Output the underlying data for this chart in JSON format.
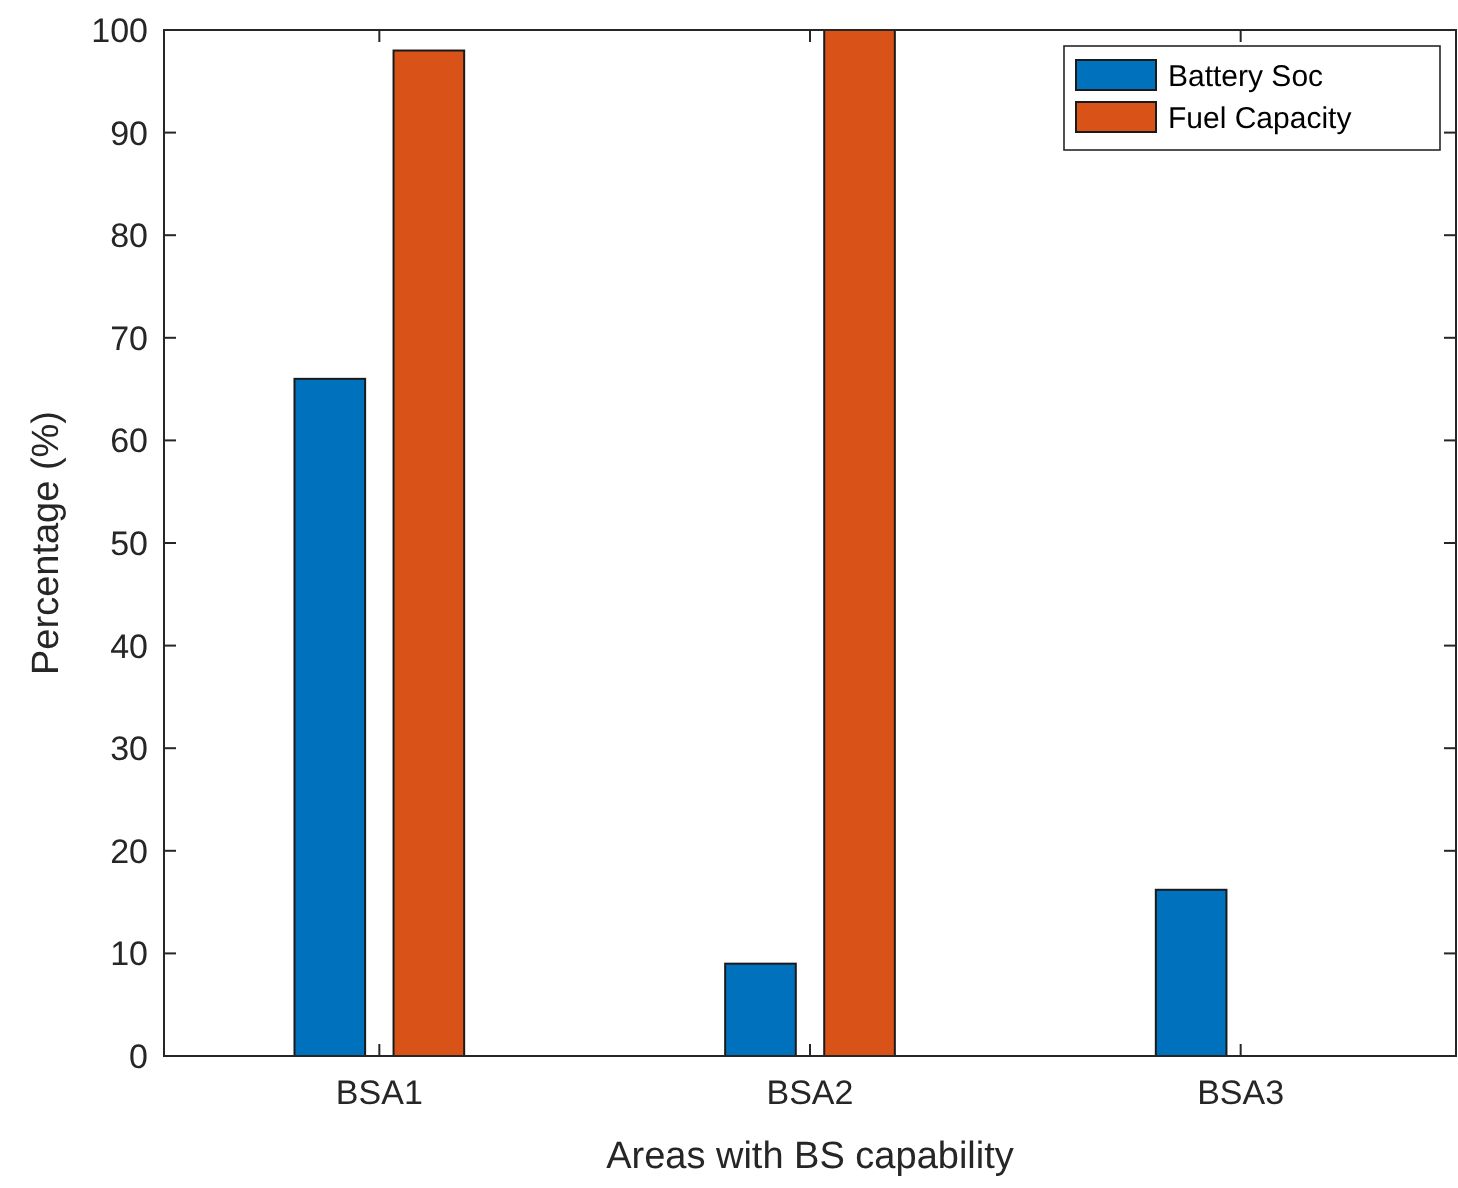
{
  "chart_data": {
    "type": "bar",
    "xlabel": "Areas with BS capability",
    "ylabel": "Percentage (%)",
    "categories": [
      "BSA1",
      "BSA2",
      "BSA3"
    ],
    "series": [
      {
        "name": "Battery Soc",
        "color": "#0072bd",
        "values": [
          66,
          9,
          16.2
        ]
      },
      {
        "name": "Fuel Capacity",
        "color": "#d95319",
        "values": [
          98,
          100,
          0
        ]
      }
    ],
    "ylim": [
      0,
      100
    ],
    "yticks": [
      0,
      10,
      20,
      30,
      40,
      50,
      60,
      70,
      80,
      90,
      100
    ],
    "grid": false,
    "legend": "top right"
  }
}
